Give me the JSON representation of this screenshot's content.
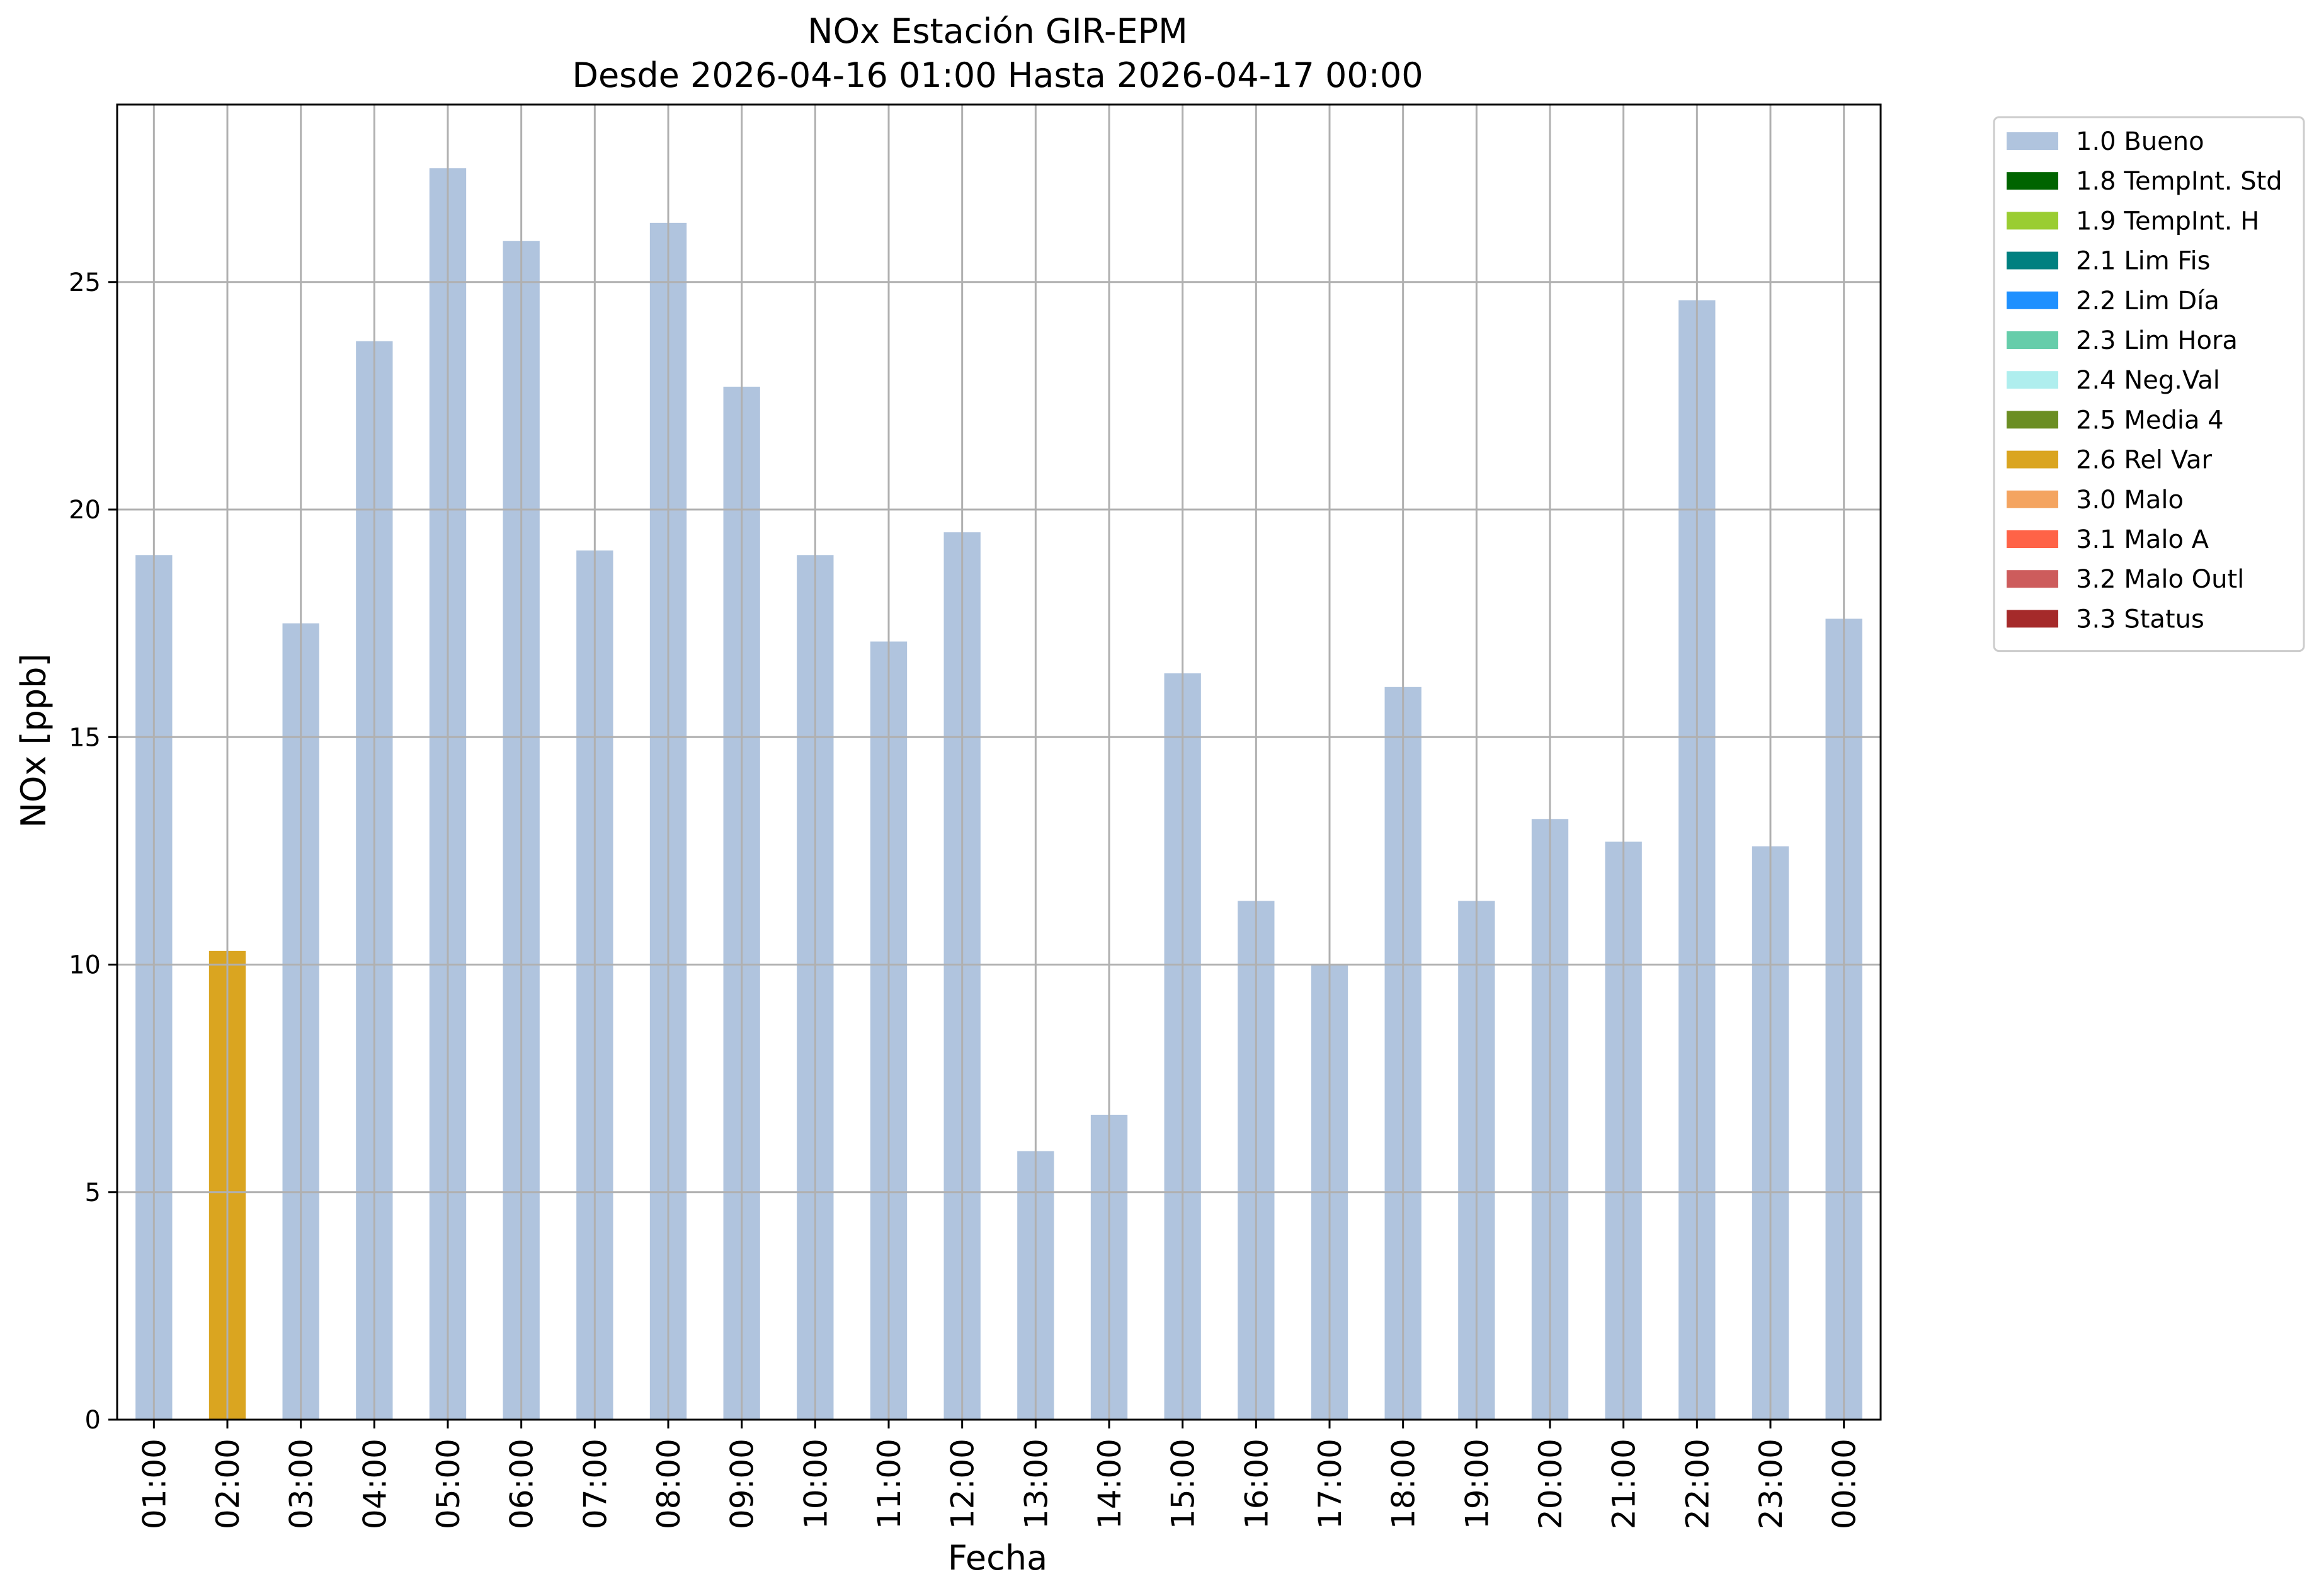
{
  "chart_data": {
    "type": "bar",
    "title": "NOx Estación GIR-EPM",
    "subtitle": "Desde 2026-04-16 01:00 Hasta 2026-04-17 00:00",
    "xlabel": "Fecha",
    "ylabel": "NOx [ppb]",
    "ylim": [
      0,
      28.9
    ],
    "yticks": [
      "0",
      "5",
      "10",
      "15",
      "20",
      "25"
    ],
    "grid": true,
    "legend_position": "outside-right",
    "categories": [
      "01:00",
      "02:00",
      "03:00",
      "04:00",
      "05:00",
      "06:00",
      "07:00",
      "08:00",
      "09:00",
      "10:00",
      "11:00",
      "12:00",
      "13:00",
      "14:00",
      "15:00",
      "16:00",
      "17:00",
      "18:00",
      "19:00",
      "20:00",
      "21:00",
      "22:00",
      "23:00",
      "00:00"
    ],
    "values": [
      19.0,
      10.3,
      17.5,
      23.7,
      27.5,
      25.9,
      19.1,
      26.3,
      22.7,
      19.0,
      17.1,
      19.5,
      5.9,
      6.7,
      16.4,
      11.4,
      10.0,
      16.1,
      11.4,
      13.2,
      12.7,
      24.6,
      12.6,
      17.6
    ],
    "flags": [
      "1.0 Bueno",
      "2.6 Rel Var",
      "1.0 Bueno",
      "1.0 Bueno",
      "1.0 Bueno",
      "1.0 Bueno",
      "1.0 Bueno",
      "1.0 Bueno",
      "1.0 Bueno",
      "1.0 Bueno",
      "1.0 Bueno",
      "1.0 Bueno",
      "1.0 Bueno",
      "1.0 Bueno",
      "1.0 Bueno",
      "1.0 Bueno",
      "1.0 Bueno",
      "1.0 Bueno",
      "1.0 Bueno",
      "1.0 Bueno",
      "1.0 Bueno",
      "1.0 Bueno",
      "1.0 Bueno",
      "1.0 Bueno"
    ],
    "legend": [
      {
        "label": "1.0 Bueno",
        "color": "#b0c4de"
      },
      {
        "label": "1.8 TempInt. Std",
        "color": "#006400"
      },
      {
        "label": "1.9 TempInt. H",
        "color": "#9acd32"
      },
      {
        "label": "2.1 Lim Fis",
        "color": "#008080"
      },
      {
        "label": "2.2 Lim Día",
        "color": "#1e90ff"
      },
      {
        "label": "2.3 Lim Hora",
        "color": "#66cdaa"
      },
      {
        "label": "2.4 Neg.Val",
        "color": "#afeeee"
      },
      {
        "label": "2.5 Media 4",
        "color": "#6b8e23"
      },
      {
        "label": "2.6 Rel Var",
        "color": "#daa520"
      },
      {
        "label": "3.0 Malo",
        "color": "#f4a460"
      },
      {
        "label": "3.1 Malo A",
        "color": "#ff6347"
      },
      {
        "label": "3.2 Malo Outl",
        "color": "#cd5c5c"
      },
      {
        "label": "3.3 Status",
        "color": "#a52a2a"
      }
    ]
  }
}
